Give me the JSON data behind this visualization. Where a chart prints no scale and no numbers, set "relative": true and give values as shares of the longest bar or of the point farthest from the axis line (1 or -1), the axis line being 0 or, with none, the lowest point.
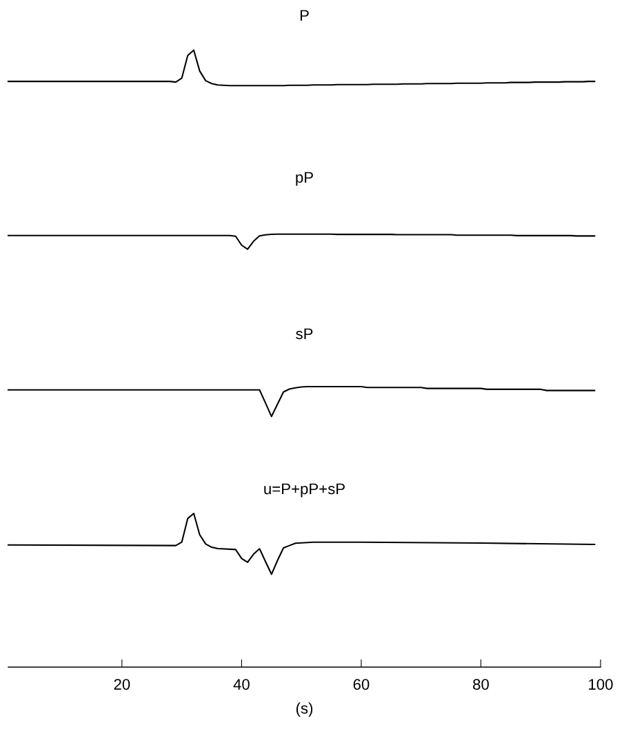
{
  "chart_data": [
    {
      "type": "line",
      "title": "P",
      "relative": true,
      "tick_labels": false,
      "categories": [
        null,
        null,
        null,
        null,
        null,
        null,
        null,
        null,
        null,
        null,
        null,
        null,
        null,
        null,
        null,
        null,
        null,
        null,
        null,
        null,
        null,
        null,
        null,
        null,
        null,
        null,
        null,
        null,
        null,
        null,
        null,
        null,
        null,
        null,
        null,
        null,
        null,
        null,
        null,
        null,
        null,
        null,
        null,
        null,
        null,
        null,
        null,
        null,
        null,
        null,
        null,
        null,
        null,
        null,
        null,
        null,
        null,
        null,
        null,
        null,
        null,
        null,
        null,
        null,
        null,
        null,
        null,
        null,
        null,
        null,
        null,
        null,
        null,
        null,
        null,
        null,
        null,
        null,
        null,
        null,
        null,
        null,
        null,
        null,
        null,
        null,
        null,
        null,
        null,
        null,
        null,
        null,
        null,
        null,
        null,
        null,
        null,
        null,
        null
      ],
      "series": [
        {
          "color": "#000000",
          "values": [
            0.12,
            0.12,
            0.12,
            0.12,
            0.12,
            0.12,
            0.12,
            0.12,
            0.12,
            0.12,
            0.12,
            0.12,
            0.12,
            0.12,
            0.12,
            0.12,
            0.12,
            0.12,
            0.12,
            0.12,
            0.12,
            0.12,
            0.12,
            0.12,
            0.12,
            0.12,
            0.12,
            0.12,
            0.1,
            0.21,
            0.85,
            1,
            0.41,
            0.14,
            0.06,
            0.02,
            0.01,
            0,
            0,
            0,
            0,
            0,
            0,
            0,
            0,
            0,
            0,
            0.01,
            0.01,
            0.01,
            0.01,
            0.02,
            0.02,
            0.02,
            0.02,
            0.03,
            0.03,
            0.03,
            0.03,
            0.03,
            0.03,
            0.04,
            0.04,
            0.04,
            0.04,
            0.04,
            0.05,
            0.05,
            0.05,
            0.05,
            0.06,
            0.06,
            0.06,
            0.06,
            0.06,
            0.07,
            0.07,
            0.07,
            0.07,
            0.07,
            0.08,
            0.08,
            0.08,
            0.08,
            0.09,
            0.09,
            0.09,
            0.09,
            0.1,
            0.1,
            0.1,
            0.1,
            0.1,
            0.11,
            0.11,
            0.11,
            0.11,
            0.12,
            0.12
          ]
        }
      ]
    },
    {
      "type": "line",
      "title": "pP",
      "relative": true,
      "tick_labels": false,
      "categories": [
        null,
        null,
        null,
        null,
        null,
        null,
        null,
        null,
        null,
        null,
        null,
        null,
        null,
        null,
        null,
        null,
        null,
        null,
        null,
        null,
        null,
        null,
        null,
        null,
        null,
        null,
        null,
        null,
        null,
        null,
        null,
        null,
        null,
        null,
        null,
        null,
        null,
        null,
        null,
        null,
        null,
        null,
        null,
        null,
        null,
        null,
        null,
        null,
        null,
        null,
        null,
        null,
        null,
        null,
        null,
        null,
        null,
        null,
        null,
        null,
        null,
        null,
        null,
        null,
        null,
        null,
        null,
        null,
        null,
        null,
        null,
        null,
        null,
        null,
        null,
        null,
        null,
        null,
        null,
        null,
        null,
        null,
        null,
        null,
        null,
        null,
        null,
        null,
        null,
        null,
        null,
        null,
        null,
        null,
        null,
        null,
        null,
        null,
        null
      ],
      "series": [
        {
          "color": "#000000",
          "values": [
            0.91,
            0.91,
            0.91,
            0.91,
            0.91,
            0.91,
            0.91,
            0.91,
            0.91,
            0.91,
            0.91,
            0.91,
            0.91,
            0.91,
            0.91,
            0.91,
            0.91,
            0.91,
            0.91,
            0.91,
            0.91,
            0.91,
            0.91,
            0.91,
            0.91,
            0.91,
            0.91,
            0.91,
            0.91,
            0.91,
            0.91,
            0.91,
            0.91,
            0.91,
            0.91,
            0.91,
            0.91,
            0.91,
            0.86,
            0.27,
            0,
            0.53,
            0.88,
            0.95,
            0.99,
            1,
            1,
            1,
            1,
            1,
            1,
            1,
            1,
            1,
            1,
            0.98,
            0.98,
            0.98,
            0.98,
            0.98,
            0.98,
            0.98,
            0.98,
            0.98,
            0.98,
            0.96,
            0.96,
            0.96,
            0.96,
            0.96,
            0.96,
            0.96,
            0.96,
            0.96,
            0.96,
            0.93,
            0.93,
            0.93,
            0.93,
            0.93,
            0.93,
            0.93,
            0.93,
            0.93,
            0.93,
            0.9,
            0.9,
            0.9,
            0.9,
            0.9,
            0.9,
            0.9,
            0.9,
            0.9,
            0.9,
            0.88,
            0.88,
            0.88,
            0.88
          ]
        }
      ]
    },
    {
      "type": "line",
      "title": "sP",
      "relative": true,
      "tick_labels": false,
      "categories": [
        null,
        null,
        null,
        null,
        null,
        null,
        null,
        null,
        null,
        null,
        null,
        null,
        null,
        null,
        null,
        null,
        null,
        null,
        null,
        null,
        null,
        null,
        null,
        null,
        null,
        null,
        null,
        null,
        null,
        null,
        null,
        null,
        null,
        null,
        null,
        null,
        null,
        null,
        null,
        null,
        null,
        null,
        null,
        null,
        null,
        null,
        null,
        null,
        null,
        null,
        null,
        null,
        null,
        null,
        null,
        null,
        null,
        null,
        null,
        null,
        null,
        null,
        null,
        null,
        null,
        null,
        null,
        null,
        null,
        null,
        null,
        null,
        null,
        null,
        null,
        null,
        null,
        null,
        null,
        null,
        null,
        null,
        null,
        null,
        null,
        null,
        null,
        null,
        null,
        null,
        null,
        null,
        null,
        null,
        null,
        null,
        null,
        null,
        null
      ],
      "series": [
        {
          "color": "#000000",
          "values": [
            0.89,
            0.89,
            0.89,
            0.89,
            0.89,
            0.89,
            0.89,
            0.89,
            0.89,
            0.89,
            0.89,
            0.89,
            0.89,
            0.89,
            0.89,
            0.89,
            0.89,
            0.89,
            0.89,
            0.89,
            0.89,
            0.89,
            0.89,
            0.89,
            0.89,
            0.89,
            0.89,
            0.89,
            0.89,
            0.89,
            0.89,
            0.89,
            0.89,
            0.89,
            0.89,
            0.89,
            0.89,
            0.89,
            0.89,
            0.89,
            0.89,
            0.89,
            0.89,
            0.45,
            0,
            0.41,
            0.82,
            0.92,
            0.96,
            0.99,
            1,
            1,
            1,
            1,
            1,
            1,
            1,
            1,
            1,
            1,
            0.97,
            0.97,
            0.97,
            0.97,
            0.97,
            0.97,
            0.97,
            0.97,
            0.97,
            0.97,
            0.94,
            0.94,
            0.94,
            0.94,
            0.94,
            0.94,
            0.94,
            0.94,
            0.94,
            0.94,
            0.91,
            0.91,
            0.91,
            0.91,
            0.91,
            0.91,
            0.91,
            0.91,
            0.91,
            0.91,
            0.87,
            0.87,
            0.87,
            0.87,
            0.87,
            0.87,
            0.87,
            0.87,
            0.87
          ]
        }
      ]
    },
    {
      "type": "line",
      "title": "u=P+pP+sP",
      "relative": true,
      "xlim": [
        1,
        100
      ],
      "xticks": [
        20,
        40,
        60,
        80,
        100
      ],
      "xlabel": "(s)",
      "tick_labels": "x",
      "series": [
        {
          "color": "#000000",
          "x": [
            1,
            29,
            30,
            31,
            32,
            33,
            34,
            35,
            36,
            39,
            40,
            41,
            42,
            43,
            44,
            45,
            46,
            47,
            48,
            49,
            52,
            60,
            80,
            99
          ],
          "values": [
            0.795,
            0.791,
            0.813,
            0.967,
            1,
            0.861,
            0.801,
            0.78,
            0.771,
            0.765,
            0.707,
            0.682,
            0.735,
            0.77,
            0.686,
            0.604,
            0.694,
            0.776,
            0.791,
            0.806,
            0.813,
            0.813,
            0.807,
            0.798
          ]
        }
      ]
    }
  ]
}
